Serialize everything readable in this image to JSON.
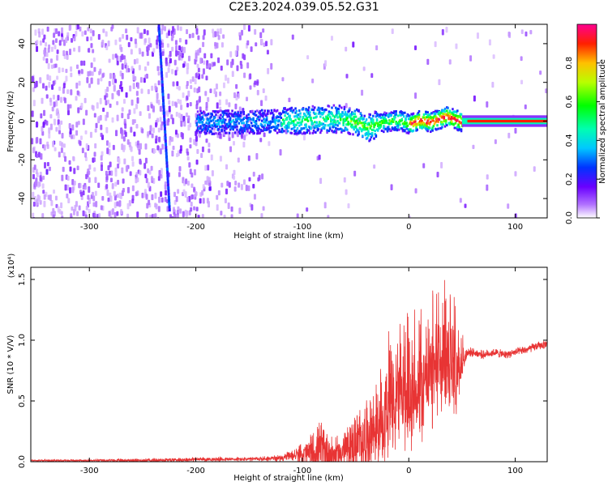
{
  "title": "C2E3.2024.039.05.52.G31",
  "chart_data": [
    {
      "type": "heatmap",
      "xlabel": "Height of straight line (km)",
      "ylabel": "Frequency (Hz)",
      "xlim": [
        -355,
        130
      ],
      "ylim": [
        -50,
        50
      ],
      "xticks": [
        -300,
        -200,
        -100,
        0,
        100
      ],
      "yticks": [
        -40,
        -20,
        0,
        20,
        40
      ],
      "colorbar": {
        "label": "Normalized spectral amplitude",
        "range": [
          0,
          1
        ],
        "ticks": [
          "0.0",
          "0.2",
          "0.4",
          "0.6",
          "0.8"
        ],
        "colormap": "rainbow"
      },
      "ridge": [
        {
          "x": -200,
          "y": 0
        },
        {
          "x": -150,
          "y": 0
        },
        {
          "x": -100,
          "y": 1
        },
        {
          "x": -70,
          "y": 2
        },
        {
          "x": -50,
          "y": 0
        },
        {
          "x": -40,
          "y": -3
        },
        {
          "x": -25,
          "y": 0
        },
        {
          "x": -10,
          "y": 1
        },
        {
          "x": 0,
          "y": -1
        },
        {
          "x": 10,
          "y": 1
        },
        {
          "x": 20,
          "y": 0
        },
        {
          "x": 35,
          "y": 3
        },
        {
          "x": 50,
          "y": 0
        },
        {
          "x": 130,
          "y": 0
        }
      ],
      "streak": {
        "x_start": -235,
        "x_end": -225,
        "y_start": 50,
        "y_end": -45
      }
    },
    {
      "type": "line",
      "xlabel": "Height of straight line (km)",
      "ylabel": "SNR (10 * V/V)",
      "yscale_label": "(x10⁴)",
      "xlim": [
        -355,
        130
      ],
      "ylim": [
        0,
        1.6
      ],
      "xticks": [
        -300,
        -200,
        -100,
        0,
        100
      ],
      "yticks": [
        "0.0",
        "0.5",
        "1.0",
        "1.5"
      ],
      "color": "#e83434",
      "envelope": {
        "x": [
          -355,
          -300,
          -250,
          -200,
          -150,
          -120,
          -110,
          -100,
          -90,
          -80,
          -70,
          -60,
          -50,
          -40,
          -30,
          -20,
          -10,
          0,
          10,
          20,
          30,
          35,
          40,
          45,
          50,
          55,
          60,
          70,
          80,
          90,
          100,
          110,
          120,
          130
        ],
        "base": [
          0.01,
          0.01,
          0.01,
          0.02,
          0.02,
          0.03,
          0.05,
          0.06,
          0.08,
          0.1,
          0.05,
          0.1,
          0.15,
          0.2,
          0.3,
          0.4,
          0.5,
          0.55,
          0.6,
          0.7,
          0.8,
          0.82,
          0.8,
          0.75,
          0.8,
          0.9,
          0.9,
          0.88,
          0.9,
          0.88,
          0.9,
          0.92,
          0.95,
          0.97
        ],
        "amp": [
          0.01,
          0.01,
          0.02,
          0.02,
          0.02,
          0.03,
          0.05,
          0.1,
          0.2,
          0.3,
          0.15,
          0.2,
          0.3,
          0.35,
          0.4,
          0.5,
          0.5,
          0.5,
          0.5,
          0.5,
          0.55,
          0.6,
          0.5,
          0.4,
          0.2,
          0.05,
          0.04,
          0.04,
          0.04,
          0.04,
          0.04,
          0.04,
          0.04,
          0.04
        ]
      }
    }
  ]
}
